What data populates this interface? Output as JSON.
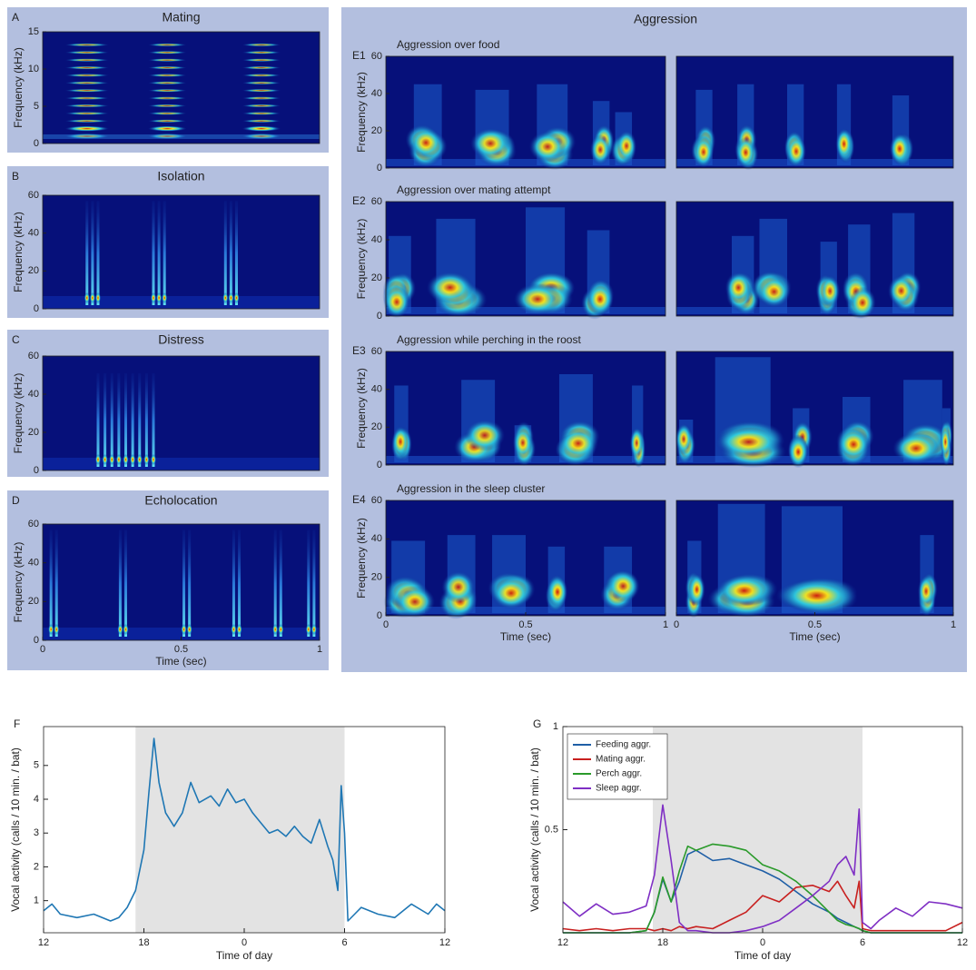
{
  "panels": [
    {
      "letter": "A",
      "title": "Mating",
      "ylabel": "Frequency (kHz)",
      "ylim": [
        0,
        15
      ],
      "yticks": [
        0,
        5,
        10,
        15
      ]
    },
    {
      "letter": "B",
      "title": "Isolation",
      "ylabel": "Frequency (kHz)",
      "ylim": [
        0,
        60
      ],
      "yticks": [
        0,
        20,
        40,
        60
      ]
    },
    {
      "letter": "C",
      "title": "Distress",
      "ylabel": "Frequency (kHz)",
      "ylim": [
        0,
        60
      ],
      "yticks": [
        0,
        20,
        40,
        60
      ]
    },
    {
      "letter": "D",
      "title": "Echolocation",
      "ylabel": "Frequency (kHz)",
      "ylim": [
        0,
        60
      ],
      "yticks": [
        0,
        20,
        40,
        60
      ],
      "xlim": [
        0,
        1
      ],
      "xticks": [
        0,
        0.5,
        1
      ],
      "xlabel": "Time (sec)"
    },
    {
      "title": "Aggression",
      "rows": [
        {
          "letter": "E1",
          "subtitle": "Aggression over food",
          "ylabel": "Frequency (kHz)",
          "ylim": [
            0,
            60
          ],
          "yticks": [
            0,
            20,
            40,
            60
          ]
        },
        {
          "letter": "E2",
          "subtitle": "Aggression over mating attempt",
          "ylabel": "Frequency (kHz)",
          "ylim": [
            0,
            60
          ],
          "yticks": [
            0,
            20,
            40,
            60
          ]
        },
        {
          "letter": "E3",
          "subtitle": "Aggression while perching in the roost",
          "ylabel": "Frequency (kHz)",
          "ylim": [
            0,
            60
          ],
          "yticks": [
            0,
            20,
            40,
            60
          ]
        },
        {
          "letter": "E4",
          "subtitle": "Aggression in the sleep cluster",
          "ylabel": "Frequency (kHz)",
          "ylim": [
            0,
            60
          ],
          "yticks": [
            0,
            20,
            40,
            60
          ],
          "xlim": [
            0,
            1
          ],
          "xticks": [
            0,
            0.5,
            1
          ],
          "xlabel": "Time (sec)"
        }
      ]
    }
  ],
  "chart_data": [
    {
      "type": "line",
      "letter": "F",
      "xlabel": "Time of day",
      "ylabel": "Vocal activity (calls / 10 min. / bat)",
      "x": [
        12,
        12.5,
        13,
        14,
        15,
        16,
        16.5,
        17,
        17.5,
        18,
        18.3,
        18.6,
        18.9,
        19.3,
        19.8,
        20.3,
        20.8,
        21.3,
        22,
        22.5,
        23,
        23.5,
        24,
        24.5,
        25,
        25.5,
        26,
        26.5,
        27,
        27.5,
        28,
        28.5,
        29,
        29.3,
        29.6,
        29.8,
        30,
        30.2,
        30.6,
        31,
        32,
        33,
        34,
        35,
        35.5,
        36
      ],
      "values": [
        0.7,
        0.9,
        0.6,
        0.5,
        0.6,
        0.4,
        0.5,
        0.8,
        1.3,
        2.5,
        4.2,
        5.8,
        4.5,
        3.6,
        3.2,
        3.6,
        4.5,
        3.9,
        4.1,
        3.8,
        4.3,
        3.9,
        4.0,
        3.6,
        3.3,
        3.0,
        3.1,
        2.9,
        3.2,
        2.9,
        2.7,
        3.4,
        2.6,
        2.2,
        1.3,
        4.4,
        3.0,
        0.4,
        0.6,
        0.8,
        0.6,
        0.5,
        0.9,
        0.6,
        0.9,
        0.7
      ],
      "color": "#1f77b4",
      "shaded_range": [
        17.5,
        30
      ],
      "xlim": [
        12,
        36
      ],
      "xticks": [
        {
          "value": 12,
          "label": "12"
        },
        {
          "value": 18,
          "label": "18"
        },
        {
          "value": 24,
          "label": "0"
        },
        {
          "value": 30,
          "label": "6"
        },
        {
          "value": 36,
          "label": "12"
        }
      ],
      "ylim": [
        0.05,
        6.15
      ],
      "yticks": [
        1,
        2,
        3,
        4,
        5
      ]
    },
    {
      "type": "line",
      "letter": "G",
      "xlabel": "Time of day",
      "ylabel": "Vocal activity (calls / 10 min. / bat)",
      "x": [
        12,
        13,
        14,
        15,
        16,
        17,
        17.5,
        18,
        18.5,
        19,
        19.5,
        20,
        21,
        22,
        23,
        24,
        25,
        26,
        27,
        28,
        28.5,
        29,
        29.5,
        29.8,
        30,
        30.5,
        31,
        32,
        33,
        34,
        35,
        36
      ],
      "series": [
        {
          "name": "Feeding aggr.",
          "color": "#1f5fa6",
          "values": [
            0,
            0,
            0,
            0,
            0,
            0.01,
            0.1,
            0.26,
            0.15,
            0.25,
            0.38,
            0.4,
            0.35,
            0.36,
            0.33,
            0.3,
            0.26,
            0.2,
            0.14,
            0.1,
            0.07,
            0.05,
            0.03,
            0.02,
            0.01,
            0,
            0,
            0,
            0,
            0,
            0,
            0
          ]
        },
        {
          "name": "Mating aggr.",
          "color": "#c8201f",
          "values": [
            0.02,
            0.01,
            0.02,
            0.01,
            0.02,
            0.02,
            0.01,
            0.02,
            0.01,
            0.03,
            0.02,
            0.03,
            0.02,
            0.06,
            0.1,
            0.18,
            0.15,
            0.22,
            0.23,
            0.2,
            0.25,
            0.18,
            0.12,
            0.25,
            0.02,
            0.01,
            0.01,
            0.01,
            0.01,
            0.01,
            0.01,
            0.05
          ]
        },
        {
          "name": "Perch aggr.",
          "color": "#2a9a2a",
          "values": [
            0,
            0,
            0,
            0,
            0,
            0.01,
            0.1,
            0.27,
            0.15,
            0.3,
            0.42,
            0.4,
            0.43,
            0.42,
            0.4,
            0.33,
            0.3,
            0.25,
            0.18,
            0.1,
            0.06,
            0.04,
            0.03,
            0.02,
            0.01,
            0,
            0,
            0,
            0,
            0,
            0,
            0
          ]
        },
        {
          "name": "Sleep aggr.",
          "color": "#7f2fc4",
          "values": [
            0.15,
            0.08,
            0.14,
            0.09,
            0.1,
            0.13,
            0.28,
            0.62,
            0.35,
            0.05,
            0.01,
            0.01,
            0,
            0,
            0.01,
            0.03,
            0.06,
            0.12,
            0.18,
            0.25,
            0.33,
            0.37,
            0.28,
            0.6,
            0.05,
            0.02,
            0.06,
            0.12,
            0.08,
            0.15,
            0.14,
            0.12
          ]
        }
      ],
      "legend": "upper left",
      "shaded_range": [
        17.4,
        30
      ],
      "xlim": [
        12,
        36
      ],
      "xticks": [
        {
          "value": 12,
          "label": "12"
        },
        {
          "value": 18,
          "label": "18"
        },
        {
          "value": 24,
          "label": "0"
        },
        {
          "value": 30,
          "label": "6"
        },
        {
          "value": 36,
          "label": "12"
        }
      ],
      "ylim": [
        0,
        1
      ],
      "yticks": [
        0.5,
        1
      ]
    }
  ]
}
